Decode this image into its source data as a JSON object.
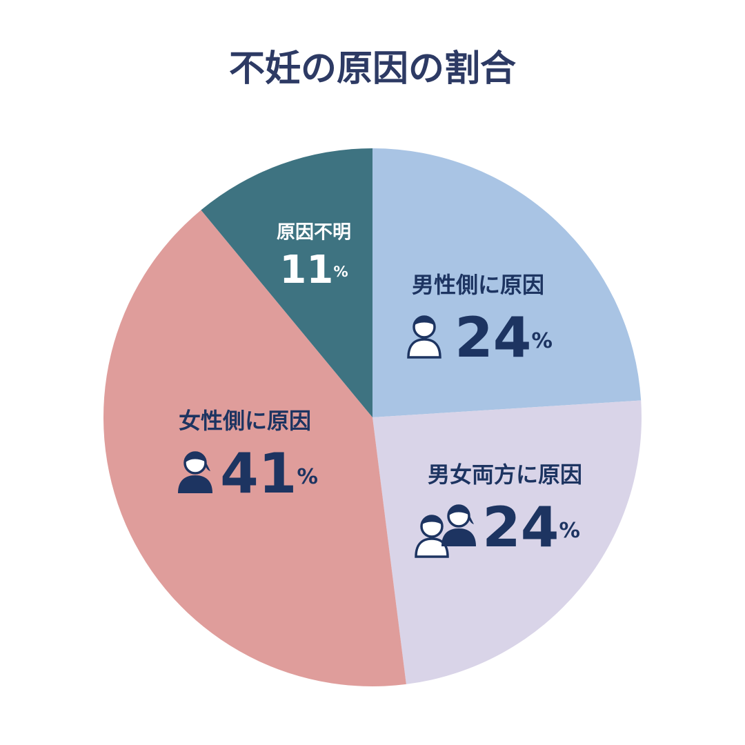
{
  "chart_data": {
    "type": "pie",
    "title": "不妊の原因の割合",
    "categories": [
      "男性側に原因",
      "男女両方に原因",
      "女性側に原因",
      "原因不明"
    ],
    "values": [
      24,
      24,
      41,
      11
    ],
    "unit": "%",
    "colors": [
      "#a9c4e4",
      "#d9d4e8",
      "#df9d9b",
      "#3e7381"
    ]
  }
}
